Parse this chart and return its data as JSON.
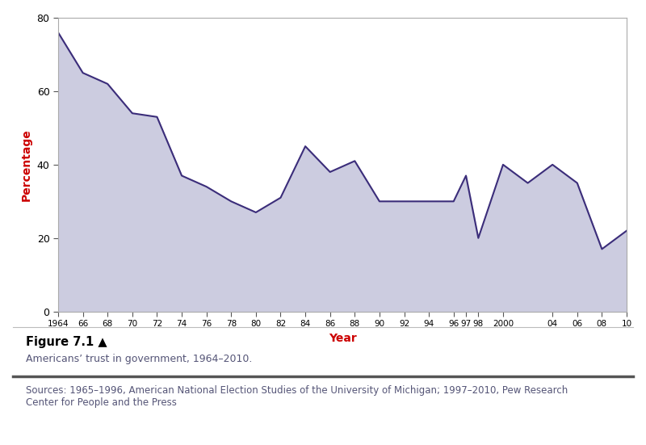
{
  "years": [
    1964,
    1966,
    1968,
    1970,
    1972,
    1974,
    1976,
    1978,
    1980,
    1982,
    1984,
    1986,
    1988,
    1990,
    1992,
    1994,
    1996,
    1997,
    1998,
    2000,
    2002,
    2004,
    2006,
    2008,
    2010
  ],
  "values": [
    76,
    65,
    62,
    54,
    53,
    37,
    34,
    30,
    27,
    31,
    45,
    38,
    41,
    30,
    30,
    30,
    30,
    37,
    20,
    40,
    35,
    40,
    35,
    17,
    22
  ],
  "fill_color": "#cccce0",
  "line_color": "#3b2d7a",
  "line_width": 1.5,
  "xlabel": "Year",
  "ylabel": "Percentage",
  "xlabel_color": "#cc0000",
  "ylabel_color": "#cc0000",
  "xlim_min": 1964,
  "xlim_max": 2010,
  "ylim_min": 0,
  "ylim_max": 80,
  "xtick_labels": [
    "1964",
    "66",
    "68",
    "70",
    "72",
    "74",
    "76",
    "78",
    "80",
    "82",
    "84",
    "86",
    "88",
    "90",
    "92",
    "94",
    "96",
    "97",
    "98",
    "2000",
    "04",
    "06",
    "08",
    "10"
  ],
  "xtick_positions": [
    1964,
    1966,
    1968,
    1970,
    1972,
    1974,
    1976,
    1978,
    1980,
    1982,
    1984,
    1986,
    1988,
    1990,
    1992,
    1994,
    1996,
    1997,
    1998,
    2000,
    2004,
    2006,
    2008,
    2010
  ],
  "ytick_positions": [
    0,
    20,
    40,
    60,
    80
  ],
  "ytick_labels": [
    "0",
    "20",
    "40",
    "60",
    "80"
  ],
  "figure_caption_title": "Figure 7.1 ▲",
  "figure_caption_subtitle": "Americans’ trust in government, 1964–2010.",
  "figure_caption_sources": "Sources: 1965–1996, American National Election Studies of the University of Michigan; 1997–2010, Pew Research\nCenter for People and the Press",
  "bg_color": "#ffffff",
  "plot_bg_color": "#ffffff",
  "border_color": "#aaaaaa",
  "tick_color": "#555555",
  "caption_title_color": "#000000",
  "caption_subtitle_color": "#555577",
  "caption_sources_color": "#555577",
  "fig_width": 8.0,
  "fig_height": 5.51
}
